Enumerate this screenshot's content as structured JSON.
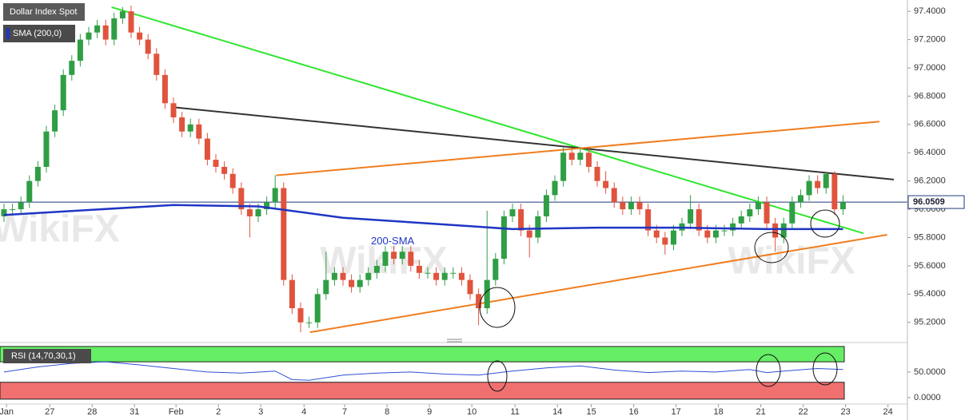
{
  "chart_data": {
    "type": "candlestick",
    "title": "Dollar Index Spot",
    "up_color": "#2f9e44",
    "down_color": "#e0533d",
    "xlim": [
      -0.47,
      106.6
    ],
    "xticks": [
      {
        "value": 0.3,
        "label": "Jan"
      },
      {
        "value": 5.4,
        "label": "27"
      },
      {
        "value": 10.4,
        "label": "28"
      },
      {
        "value": 15.4,
        "label": "31"
      },
      {
        "value": 20.3,
        "label": "Feb"
      },
      {
        "value": 25.3,
        "label": "2"
      },
      {
        "value": 30.3,
        "label": "3"
      },
      {
        "value": 35.4,
        "label": "4"
      },
      {
        "value": 40.2,
        "label": "7"
      },
      {
        "value": 45.2,
        "label": "8"
      },
      {
        "value": 50.2,
        "label": "9"
      },
      {
        "value": 55.2,
        "label": "10"
      },
      {
        "value": 60.3,
        "label": "11"
      },
      {
        "value": 65.3,
        "label": "14"
      },
      {
        "value": 69.3,
        "label": "15"
      },
      {
        "value": 74.3,
        "label": "16"
      },
      {
        "value": 79.3,
        "label": "17"
      },
      {
        "value": 84.3,
        "label": "18"
      },
      {
        "value": 89.3,
        "label": "21"
      },
      {
        "value": 94.3,
        "label": "22"
      },
      {
        "value": 99.3,
        "label": "23"
      },
      {
        "value": 104.3,
        "label": "24"
      }
    ],
    "ylim": [
      95.08,
      97.48
    ],
    "yticks": [
      {
        "value": 95.2,
        "label": "95.2000"
      },
      {
        "value": 95.4,
        "label": "95.4000"
      },
      {
        "value": 95.6,
        "label": "95.6000"
      },
      {
        "value": 95.8,
        "label": "95.8000"
      },
      {
        "value": 96.0,
        "label": "96.0000"
      },
      {
        "value": 96.2,
        "label": "96.2000"
      },
      {
        "value": 96.4,
        "label": "96.4000"
      },
      {
        "value": 96.6,
        "label": "96.6000"
      },
      {
        "value": 96.8,
        "label": "96.8000"
      },
      {
        "value": 97.0,
        "label": "97.0000"
      },
      {
        "value": 97.2,
        "label": "97.2000"
      },
      {
        "value": 97.4,
        "label": "97.4000"
      }
    ],
    "open": [
      95.95,
      96.0,
      96.0,
      96.05,
      96.2,
      96.3,
      96.55,
      96.7,
      96.95,
      97.05,
      97.2,
      97.25,
      97.3,
      97.2,
      97.35,
      97.4,
      97.25,
      97.2,
      97.1,
      96.95,
      96.75,
      96.65,
      96.55,
      96.6,
      96.5,
      96.35,
      96.3,
      96.25,
      96.15,
      96.0,
      95.95,
      96.0,
      96.05,
      96.15,
      95.5,
      95.3,
      95.2,
      95.2,
      95.4,
      95.5,
      95.55,
      95.5,
      95.45,
      95.5,
      95.55,
      95.6,
      95.7,
      95.65,
      95.7,
      95.6,
      95.55,
      95.55,
      95.5,
      95.55,
      95.55,
      95.5,
      95.4,
      95.3,
      95.5,
      95.65,
      95.95,
      96.0,
      95.85,
      95.8,
      95.95,
      96.1,
      96.2,
      96.4,
      96.35,
      96.4,
      96.3,
      96.2,
      96.15,
      96.05,
      96.0,
      96.05,
      96.0,
      95.85,
      95.8,
      95.75,
      95.85,
      95.9,
      96.0,
      95.85,
      95.8,
      95.85,
      95.85,
      95.9,
      95.95,
      96.0,
      96.05,
      95.9,
      95.8,
      95.9,
      96.05,
      96.1,
      96.2,
      96.15,
      96.25,
      96.0
    ],
    "high": [
      96.04,
      96.04,
      96.09,
      96.24,
      96.34,
      96.59,
      96.74,
      96.99,
      97.09,
      97.24,
      97.29,
      97.34,
      97.34,
      97.39,
      97.43,
      97.44,
      97.29,
      97.24,
      97.14,
      96.99,
      96.79,
      96.69,
      96.64,
      96.64,
      96.54,
      96.39,
      96.34,
      96.29,
      96.19,
      96.04,
      96.04,
      96.09,
      96.24,
      96.19,
      95.54,
      95.34,
      95.24,
      95.44,
      95.7,
      95.59,
      95.59,
      95.54,
      95.54,
      95.59,
      95.64,
      95.74,
      95.74,
      95.74,
      95.74,
      95.64,
      95.59,
      95.59,
      95.59,
      95.59,
      95.59,
      95.54,
      95.44,
      95.99,
      95.69,
      95.99,
      96.04,
      96.04,
      95.89,
      95.99,
      96.14,
      96.24,
      96.44,
      96.42,
      96.43,
      96.44,
      96.34,
      96.27,
      96.19,
      96.09,
      96.09,
      96.09,
      96.04,
      95.89,
      95.84,
      95.89,
      95.94,
      96.1,
      96.04,
      95.89,
      95.89,
      95.89,
      95.94,
      95.99,
      96.04,
      96.09,
      96.09,
      95.94,
      95.94,
      96.09,
      96.14,
      96.24,
      96.24,
      96.26,
      96.27,
      96.1
    ],
    "low": [
      95.91,
      95.96,
      95.96,
      96.01,
      96.16,
      96.26,
      96.51,
      96.66,
      96.91,
      97.01,
      97.16,
      97.21,
      97.16,
      97.16,
      97.31,
      97.21,
      97.16,
      97.06,
      96.91,
      96.71,
      96.61,
      96.51,
      96.51,
      96.46,
      96.31,
      96.26,
      96.21,
      96.11,
      95.96,
      95.8,
      95.91,
      95.96,
      96.01,
      95.46,
      95.26,
      95.13,
      95.16,
      95.16,
      95.36,
      95.46,
      95.46,
      95.41,
      95.41,
      95.46,
      95.51,
      95.56,
      95.61,
      95.61,
      95.56,
      95.51,
      95.51,
      95.46,
      95.46,
      95.51,
      95.46,
      95.36,
      95.18,
      95.26,
      95.46,
      95.61,
      95.91,
      95.81,
      95.66,
      95.76,
      95.91,
      96.06,
      96.16,
      96.31,
      96.31,
      96.26,
      96.16,
      96.11,
      96.01,
      95.96,
      95.96,
      95.96,
      95.81,
      95.76,
      95.68,
      95.71,
      95.81,
      95.86,
      95.81,
      95.76,
      95.76,
      95.81,
      95.81,
      95.86,
      95.91,
      95.96,
      95.86,
      95.7,
      95.76,
      95.86,
      96.01,
      96.06,
      96.11,
      96.11,
      95.96,
      95.96
    ],
    "close": [
      96.0,
      96.0,
      96.05,
      96.2,
      96.3,
      96.55,
      96.7,
      96.95,
      97.05,
      97.2,
      97.25,
      97.3,
      97.2,
      97.35,
      97.4,
      97.25,
      97.2,
      97.1,
      96.95,
      96.75,
      96.65,
      96.55,
      96.6,
      96.5,
      96.35,
      96.3,
      96.25,
      96.15,
      96.0,
      95.95,
      96.0,
      96.05,
      96.15,
      95.5,
      95.3,
      95.2,
      95.2,
      95.4,
      95.5,
      95.55,
      95.5,
      95.45,
      95.5,
      95.55,
      95.6,
      95.7,
      95.65,
      95.7,
      95.6,
      95.55,
      95.55,
      95.5,
      95.55,
      95.55,
      95.5,
      95.4,
      95.3,
      95.5,
      95.65,
      95.95,
      96.0,
      95.85,
      95.8,
      95.95,
      96.1,
      96.2,
      96.4,
      96.35,
      96.4,
      96.3,
      96.2,
      96.15,
      96.05,
      96.0,
      96.05,
      96.0,
      95.85,
      95.8,
      95.75,
      95.85,
      95.9,
      96.0,
      95.85,
      95.8,
      95.85,
      95.85,
      95.9,
      95.95,
      96.0,
      96.05,
      95.9,
      95.8,
      95.9,
      96.05,
      96.1,
      96.2,
      96.15,
      96.25,
      96.0,
      96.05
    ],
    "current_price": 96.0509,
    "current_price_color": "#1f3a7a",
    "overlays": [
      {
        "name": "SMA (200,0)",
        "label": "200-SMA",
        "color": "#1f35c4",
        "x": [
          0,
          20,
          30,
          40,
          50,
          55,
          60,
          70,
          80,
          90,
          99
        ],
        "values": [
          95.96,
          96.03,
          96.02,
          95.94,
          95.9,
          95.88,
          95.86,
          95.87,
          95.87,
          95.86,
          95.86
        ]
      }
    ],
    "trendlines": [
      {
        "color": "#2ee62e",
        "x": [
          12.7,
          101.4
        ],
        "values": [
          97.43,
          95.83
        ]
      },
      {
        "color": "#333333",
        "x": [
          20.3,
          105
        ],
        "values": [
          96.72,
          96.21
        ]
      },
      {
        "color": "#f07d1e",
        "x": [
          32.1,
          103.3
        ],
        "values": [
          96.24,
          96.62
        ]
      },
      {
        "color": "#f07d1e",
        "x": [
          36.1,
          104.2
        ],
        "values": [
          95.13,
          95.82
        ]
      }
    ],
    "watermark": "WikiFX",
    "rsi": {
      "type": "line",
      "name": "RSI (14,70,30,1)",
      "color": "#2f4fd6",
      "ylim": [
        -11,
        103
      ],
      "yticks": [
        {
          "value": 0,
          "label": "0.0000"
        },
        {
          "value": 50,
          "label": "50.0000"
        }
      ],
      "overbought": [
        70,
        100
      ],
      "overbought_color": "#66ee66",
      "oversold": [
        -3,
        30
      ],
      "oversold_color": "#f07070",
      "x": [
        0,
        4,
        8,
        12,
        16,
        20,
        24,
        28,
        32,
        34,
        36,
        40,
        44,
        48,
        52,
        56,
        58,
        60,
        64,
        68,
        72,
        76,
        80,
        84,
        88,
        90,
        92,
        96,
        99
      ],
      "values": [
        50,
        60,
        67,
        70,
        64,
        57,
        50,
        48,
        52,
        35,
        34,
        44,
        48,
        50,
        46,
        44,
        48,
        52,
        58,
        62,
        54,
        49,
        52,
        50,
        55,
        49,
        52,
        57,
        55
      ]
    }
  }
}
